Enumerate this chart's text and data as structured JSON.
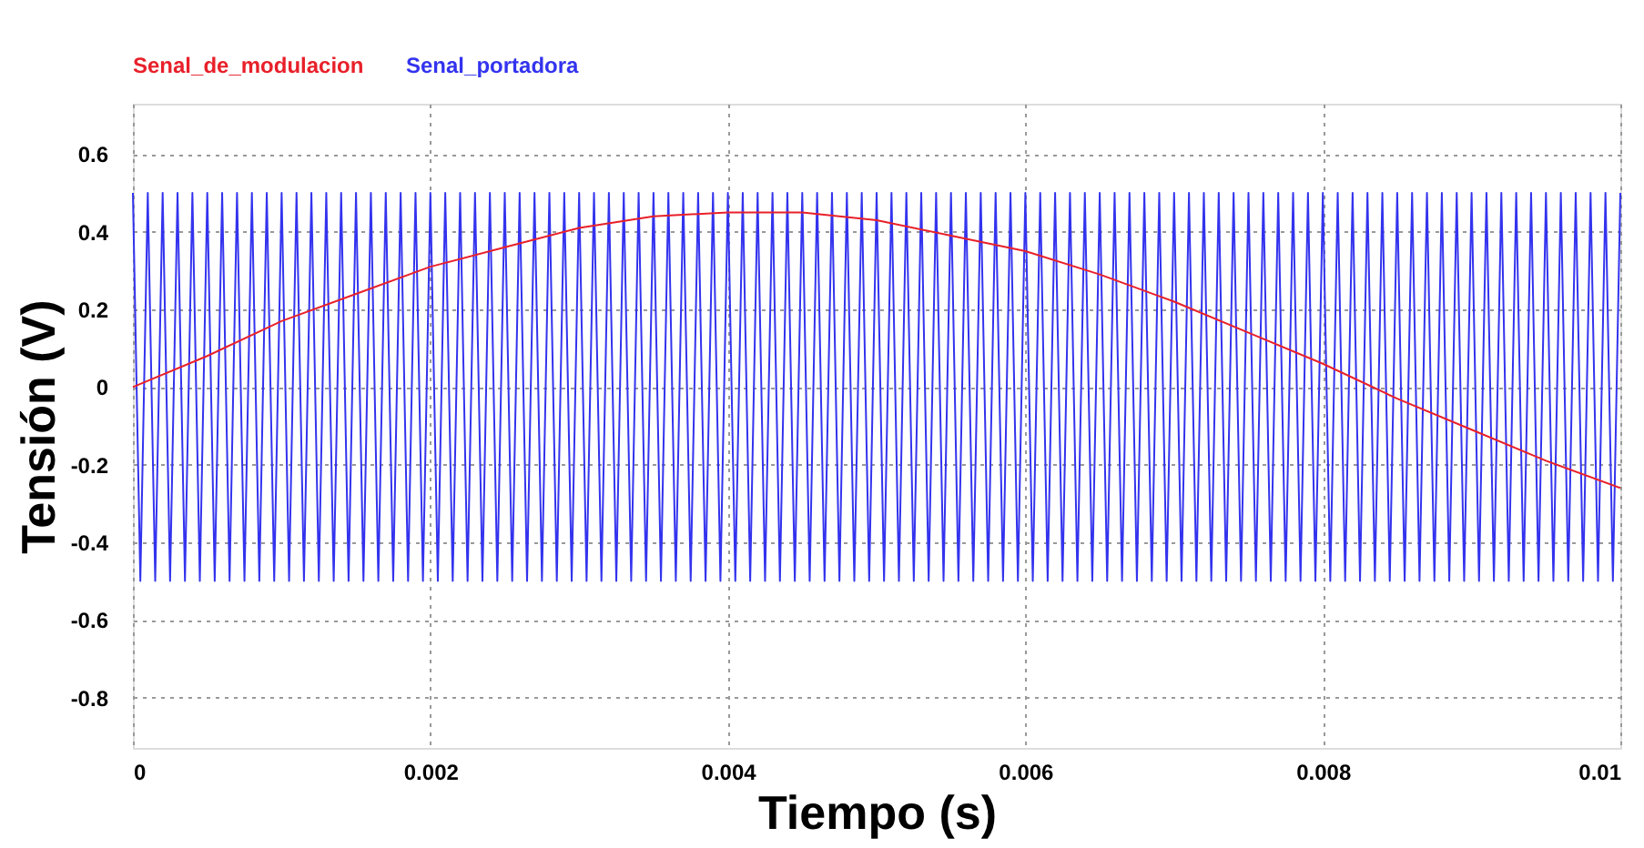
{
  "chart_data": {
    "type": "line",
    "xlabel": "Tiempo (s)",
    "ylabel": "Tensión (V)",
    "xlim": [
      0,
      0.01
    ],
    "ylim": [
      -0.93,
      0.73
    ],
    "xticks": [
      0,
      0.002,
      0.004,
      0.006,
      0.008,
      0.01
    ],
    "yticks": [
      -0.8,
      -0.6,
      -0.4,
      -0.2,
      0,
      0.2,
      0.4,
      0.6
    ],
    "grid": true,
    "legend": "top left",
    "marker": "none",
    "line_style": "solid",
    "series": [
      {
        "name": "Senal_de_modulacion",
        "color": "#e8202a",
        "x": [
          0,
          0.0005,
          0.001,
          0.0015,
          0.002,
          0.0025,
          0.003,
          0.0035,
          0.004,
          0.0045,
          0.005,
          0.0055,
          0.006,
          0.0065,
          0.007,
          0.0075,
          0.008,
          0.0085,
          0.009,
          0.0095,
          0.01
        ],
        "values": [
          0,
          0.08,
          0.17,
          0.24,
          0.31,
          0.36,
          0.41,
          0.44,
          0.45,
          0.45,
          0.43,
          0.39,
          0.35,
          0.29,
          0.22,
          0.14,
          0.06,
          -0.03,
          -0.11,
          -0.19,
          -0.26
        ]
      },
      {
        "name": "Senal_portadora",
        "color": "#3333ee",
        "x": [
          0.0,
          5e-05,
          0.0001,
          0.00015,
          0.0002,
          0.00025,
          0.0003,
          0.00035,
          0.0004,
          0.00045,
          0.0005,
          0.00055,
          0.0006,
          0.00065,
          0.0007,
          0.00075,
          0.0008,
          0.00085,
          0.0009,
          0.00095,
          0.001,
          0.00105,
          0.0011,
          0.00115,
          0.0012,
          0.00125,
          0.0013,
          0.00135,
          0.0014,
          0.00145,
          0.0015,
          0.00155,
          0.0016,
          0.00165,
          0.0017,
          0.00175,
          0.0018,
          0.00185,
          0.0019,
          0.00195,
          0.002,
          0.00205,
          0.0021,
          0.00215,
          0.0022,
          0.00225,
          0.0023,
          0.00235,
          0.0024,
          0.00245,
          0.0025,
          0.00255,
          0.0026,
          0.00265,
          0.0027,
          0.00275,
          0.0028,
          0.00285,
          0.0029,
          0.00295,
          0.003,
          0.00305,
          0.0031,
          0.00315,
          0.0032,
          0.00325,
          0.0033,
          0.00335,
          0.0034,
          0.00345,
          0.0035,
          0.00355,
          0.0036,
          0.00365,
          0.0037,
          0.00375,
          0.0038,
          0.00385,
          0.0039,
          0.00395,
          0.004,
          0.00405,
          0.0041,
          0.00415,
          0.0042,
          0.00425,
          0.0043,
          0.00435,
          0.0044,
          0.00445,
          0.0045,
          0.00455,
          0.0046,
          0.00465,
          0.0047,
          0.00475,
          0.0048,
          0.00485,
          0.0049,
          0.00495,
          0.005,
          0.00505,
          0.0051,
          0.00515,
          0.0052,
          0.00525,
          0.0053,
          0.00535,
          0.0054,
          0.00545,
          0.0055,
          0.00555,
          0.0056,
          0.00565,
          0.0057,
          0.00575,
          0.0058,
          0.00585,
          0.0059,
          0.00595,
          0.006,
          0.00605,
          0.0061,
          0.00615,
          0.0062,
          0.00625,
          0.0063,
          0.00635,
          0.0064,
          0.00645,
          0.0065,
          0.00655,
          0.0066,
          0.00665,
          0.0067,
          0.00675,
          0.0068,
          0.00685,
          0.0069,
          0.00695,
          0.007,
          0.00705,
          0.0071,
          0.00715,
          0.0072,
          0.00725,
          0.0073,
          0.00735,
          0.0074,
          0.00745,
          0.0075,
          0.00755,
          0.0076,
          0.00765,
          0.0077,
          0.00775,
          0.0078,
          0.00785,
          0.0079,
          0.00795,
          0.008,
          0.00805,
          0.0081,
          0.00815,
          0.0082,
          0.00825,
          0.0083,
          0.00835,
          0.0084,
          0.00845,
          0.0085,
          0.00855,
          0.0086,
          0.00865,
          0.0087,
          0.00875,
          0.0088,
          0.00885,
          0.0089,
          0.00895,
          0.009,
          0.00905,
          0.0091,
          0.00915,
          0.0092,
          0.00925,
          0.0093,
          0.00935,
          0.0094,
          0.00945,
          0.0095,
          0.00955,
          0.0096,
          0.00965,
          0.0097,
          0.00975,
          0.0098,
          0.00985,
          0.0099,
          0.00995,
          0.01
        ],
        "values": [
          0.5,
          -0.5,
          0.5,
          -0.5,
          0.5,
          -0.5,
          0.5,
          -0.5,
          0.5,
          -0.5,
          0.5,
          -0.5,
          0.5,
          -0.5,
          0.5,
          -0.5,
          0.5,
          -0.5,
          0.5,
          -0.5,
          0.5,
          -0.5,
          0.5,
          -0.5,
          0.5,
          -0.5,
          0.5,
          -0.5,
          0.5,
          -0.5,
          0.5,
          -0.5,
          0.5,
          -0.5,
          0.5,
          -0.5,
          0.5,
          -0.5,
          0.5,
          -0.5,
          0.5,
          -0.5,
          0.5,
          -0.5,
          0.5,
          -0.5,
          0.5,
          -0.5,
          0.5,
          -0.5,
          0.5,
          -0.5,
          0.5,
          -0.5,
          0.5,
          -0.5,
          0.5,
          -0.5,
          0.5,
          -0.5,
          0.5,
          -0.5,
          0.5,
          -0.5,
          0.5,
          -0.5,
          0.5,
          -0.5,
          0.5,
          -0.5,
          0.5,
          -0.5,
          0.5,
          -0.5,
          0.5,
          -0.5,
          0.5,
          -0.5,
          0.5,
          -0.5,
          0.5,
          -0.5,
          0.5,
          -0.5,
          0.5,
          -0.5,
          0.5,
          -0.5,
          0.5,
          -0.5,
          0.5,
          -0.5,
          0.5,
          -0.5,
          0.5,
          -0.5,
          0.5,
          -0.5,
          0.5,
          -0.5,
          0.5,
          -0.5,
          0.5,
          -0.5,
          0.5,
          -0.5,
          0.5,
          -0.5,
          0.5,
          -0.5,
          0.5,
          -0.5,
          0.5,
          -0.5,
          0.5,
          -0.5,
          0.5,
          -0.5,
          0.5,
          -0.5,
          0.5,
          -0.5,
          0.5,
          -0.5,
          0.5,
          -0.5,
          0.5,
          -0.5,
          0.5,
          -0.5,
          0.5,
          -0.5,
          0.5,
          -0.5,
          0.5,
          -0.5,
          0.5,
          -0.5,
          0.5,
          -0.5,
          0.5,
          -0.5,
          0.5,
          -0.5,
          0.5,
          -0.5,
          0.5,
          -0.5,
          0.5,
          -0.5,
          0.5,
          -0.5,
          0.5,
          -0.5,
          0.5,
          -0.5,
          0.5,
          -0.5,
          0.5,
          -0.5,
          0.5,
          -0.5,
          0.5,
          -0.5,
          0.5,
          -0.5,
          0.5,
          -0.5,
          0.5,
          -0.5,
          0.5,
          -0.5,
          0.5,
          -0.5,
          0.5,
          -0.5,
          0.5,
          -0.5,
          0.5,
          -0.5,
          0.5,
          -0.5,
          0.5,
          -0.5,
          0.5,
          -0.5,
          0.5,
          -0.5,
          0.5,
          -0.5,
          0.5,
          -0.5,
          0.5,
          -0.5,
          0.5,
          -0.5,
          0.5,
          -0.5,
          0.5,
          -0.5,
          0.5
        ]
      }
    ]
  }
}
